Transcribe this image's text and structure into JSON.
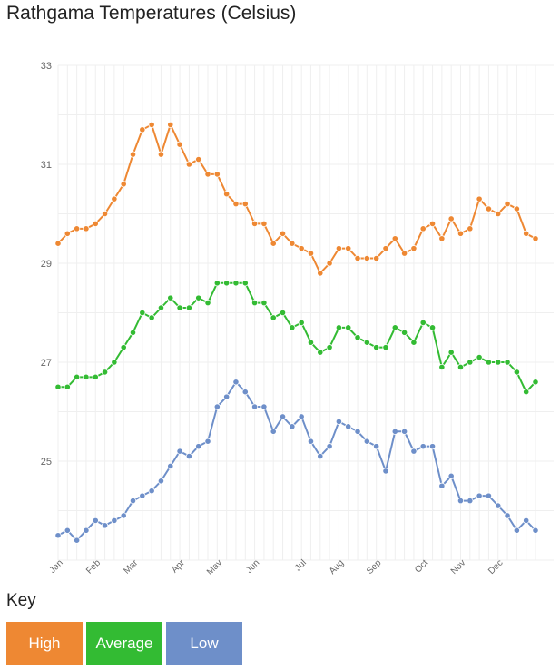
{
  "title": "Rathgama Temperatures (Celsius)",
  "key_label": "Key",
  "chart_data": {
    "type": "line",
    "title": "Rathgama Temperatures (Celsius)",
    "xlabel": "",
    "ylabel": "",
    "ylim": [
      23,
      33
    ],
    "y_ticks": [
      25,
      27,
      29,
      31,
      33
    ],
    "grid": true,
    "legend": "bottom",
    "month_labels": [
      "Jan",
      "Feb",
      "Mar",
      "Apr",
      "May",
      "Jun",
      "Jul",
      "Aug",
      "Sep",
      "Oct",
      "Nov",
      "Dec"
    ],
    "month_start_index": [
      0,
      4,
      8,
      13,
      17,
      21,
      26,
      30,
      34,
      39,
      43,
      47
    ],
    "x": [
      1,
      2,
      3,
      4,
      5,
      6,
      7,
      8,
      9,
      10,
      11,
      12,
      13,
      14,
      15,
      16,
      17,
      18,
      19,
      20,
      21,
      22,
      23,
      24,
      25,
      26,
      27,
      28,
      29,
      30,
      31,
      32,
      33,
      34,
      35,
      36,
      37,
      38,
      39,
      40,
      41,
      42,
      43,
      44,
      45,
      46,
      47,
      48,
      49,
      50,
      51,
      52
    ],
    "series": [
      {
        "name": "High",
        "color": "#ee8833",
        "values": [
          29.4,
          29.6,
          29.7,
          29.7,
          29.8,
          30.0,
          30.3,
          30.6,
          31.2,
          31.7,
          31.8,
          31.2,
          31.8,
          31.4,
          31.0,
          31.1,
          30.8,
          30.8,
          30.4,
          30.2,
          30.2,
          29.8,
          29.8,
          29.4,
          29.6,
          29.4,
          29.3,
          29.2,
          28.8,
          29.0,
          29.3,
          29.3,
          29.1,
          29.1,
          29.1,
          29.3,
          29.5,
          29.2,
          29.3,
          29.7,
          29.8,
          29.5,
          29.9,
          29.6,
          29.7,
          30.3,
          30.1,
          30.0,
          30.2,
          30.1,
          29.6,
          29.5
        ]
      },
      {
        "name": "Average",
        "color": "#33bb33",
        "values": [
          26.5,
          26.5,
          26.7,
          26.7,
          26.7,
          26.8,
          27.0,
          27.3,
          27.6,
          28.0,
          27.9,
          28.1,
          28.3,
          28.1,
          28.1,
          28.3,
          28.2,
          28.6,
          28.6,
          28.6,
          28.6,
          28.2,
          28.2,
          27.9,
          28.0,
          27.7,
          27.8,
          27.4,
          27.2,
          27.3,
          27.7,
          27.7,
          27.5,
          27.4,
          27.3,
          27.3,
          27.7,
          27.6,
          27.4,
          27.8,
          27.7,
          26.9,
          27.2,
          26.9,
          27.0,
          27.1,
          27.0,
          27.0,
          27.0,
          26.8,
          26.4,
          26.6
        ]
      },
      {
        "name": "Low",
        "color": "#6e8fc9",
        "values": [
          23.5,
          23.6,
          23.4,
          23.6,
          23.8,
          23.7,
          23.8,
          23.9,
          24.2,
          24.3,
          24.4,
          24.6,
          24.9,
          25.2,
          25.1,
          25.3,
          25.4,
          26.1,
          26.3,
          26.6,
          26.4,
          26.1,
          26.1,
          25.6,
          25.9,
          25.7,
          25.9,
          25.4,
          25.1,
          25.3,
          25.8,
          25.7,
          25.6,
          25.4,
          25.3,
          24.8,
          25.6,
          25.6,
          25.2,
          25.3,
          25.3,
          24.5,
          24.7,
          24.2,
          24.2,
          24.3,
          24.3,
          24.1,
          23.9,
          23.6,
          23.8,
          23.6
        ]
      }
    ]
  },
  "legend": [
    {
      "label": "High",
      "color": "#ee8833"
    },
    {
      "label": "Average",
      "color": "#33bb33"
    },
    {
      "label": "Low",
      "color": "#6e8fc9"
    }
  ]
}
